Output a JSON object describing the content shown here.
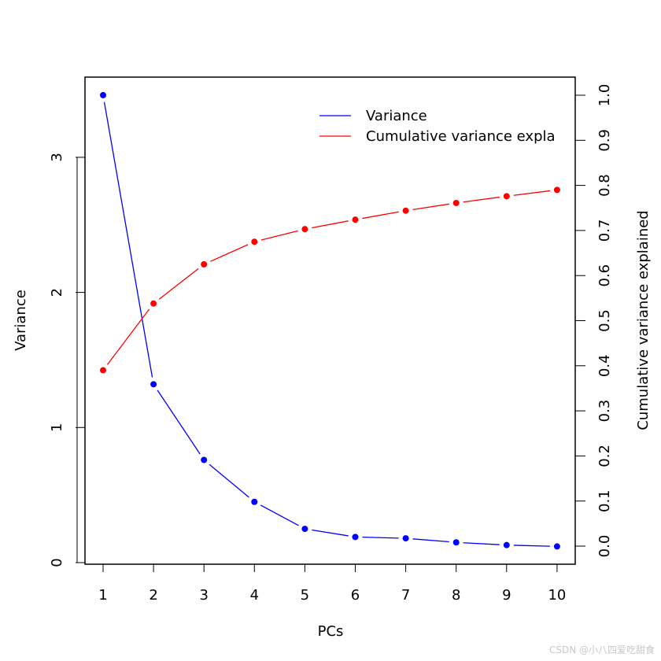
{
  "chart_data": {
    "type": "line",
    "title": "",
    "xlabel": "PCs",
    "ylabel": "Variance",
    "y2label": "Cumulative variance explained",
    "x": [
      1,
      2,
      3,
      4,
      5,
      6,
      7,
      8,
      9,
      10
    ],
    "x_ticks": [
      "1",
      "2",
      "3",
      "4",
      "5",
      "6",
      "7",
      "8",
      "9",
      "10"
    ],
    "y_ticks": [
      "0",
      "1",
      "2",
      "3"
    ],
    "y2_ticks": [
      "0.0",
      "0.1",
      "0.2",
      "0.3",
      "0.4",
      "0.5",
      "0.6",
      "0.7",
      "0.8",
      "0.9",
      "1.0"
    ],
    "ylim": [
      0,
      3.5
    ],
    "y2lim": [
      0,
      1.0
    ],
    "grid": false,
    "legend_position": "top-right",
    "series": [
      {
        "name": "Variance",
        "axis": "left",
        "color": "#0000ff",
        "values": [
          3.46,
          1.32,
          0.76,
          0.45,
          0.25,
          0.19,
          0.18,
          0.15,
          0.13,
          0.12
        ]
      },
      {
        "name": "Cumulative variance explained",
        "axis": "right",
        "color": "#ff0000",
        "values": [
          0.39,
          0.538,
          0.625,
          0.675,
          0.703,
          0.724,
          0.744,
          0.761,
          0.776,
          0.79
        ]
      }
    ]
  },
  "legend": {
    "items": [
      {
        "label": "Variance",
        "color": "#0000ff"
      },
      {
        "label": "Cumulative variance expla",
        "color": "#ff0000"
      }
    ]
  },
  "watermark": "CSDN @小八四爱吃甜食"
}
